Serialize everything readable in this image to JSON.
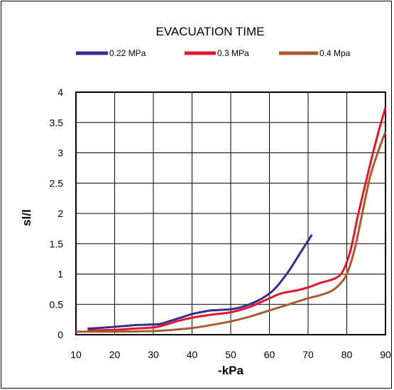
{
  "chart_data": {
    "type": "line",
    "title": "EVACUATION TIME",
    "xlabel": "-kPa",
    "ylabel": "sl/l",
    "xlim": [
      10,
      90
    ],
    "ylim": [
      0,
      4
    ],
    "x_ticks": [
      "10",
      "20",
      "30",
      "40",
      "50",
      "60",
      "70",
      "80",
      "90"
    ],
    "y_ticks": [
      "0",
      "0.5",
      "1",
      "1.5",
      "2",
      "2.5",
      "3",
      "3.5",
      "4"
    ],
    "grid": true,
    "legend_position": "top",
    "series": [
      {
        "name": "0.22 MPa",
        "color": "#3a2a8c",
        "points": [
          [
            13,
            0.1
          ],
          [
            18,
            0.12
          ],
          [
            22,
            0.14
          ],
          [
            26,
            0.16
          ],
          [
            30,
            0.17
          ],
          [
            32,
            0.18
          ],
          [
            34,
            0.22
          ],
          [
            37,
            0.28
          ],
          [
            40,
            0.34
          ],
          [
            43,
            0.38
          ],
          [
            45,
            0.4
          ],
          [
            50,
            0.42
          ],
          [
            53,
            0.46
          ],
          [
            57,
            0.56
          ],
          [
            60,
            0.68
          ],
          [
            62,
            0.8
          ],
          [
            65,
            1.05
          ],
          [
            68,
            1.35
          ],
          [
            71,
            1.65
          ]
        ]
      },
      {
        "name": "0.3 MPa",
        "color": "#e3162e",
        "points": [
          [
            13,
            0.07
          ],
          [
            20,
            0.08
          ],
          [
            25,
            0.1
          ],
          [
            30,
            0.12
          ],
          [
            33,
            0.16
          ],
          [
            36,
            0.22
          ],
          [
            40,
            0.28
          ],
          [
            45,
            0.33
          ],
          [
            50,
            0.37
          ],
          [
            55,
            0.46
          ],
          [
            60,
            0.6
          ],
          [
            63,
            0.68
          ],
          [
            67,
            0.73
          ],
          [
            70,
            0.78
          ],
          [
            73,
            0.85
          ],
          [
            77,
            0.93
          ],
          [
            79,
            1.05
          ],
          [
            81,
            1.4
          ],
          [
            83,
            2.0
          ],
          [
            86,
            2.8
          ],
          [
            88,
            3.3
          ],
          [
            90,
            3.75
          ]
        ]
      },
      {
        "name": "0.4 Mpa",
        "color": "#a65c2c",
        "points": [
          [
            10,
            0.05
          ],
          [
            20,
            0.05
          ],
          [
            30,
            0.06
          ],
          [
            35,
            0.08
          ],
          [
            40,
            0.11
          ],
          [
            45,
            0.16
          ],
          [
            50,
            0.22
          ],
          [
            55,
            0.3
          ],
          [
            60,
            0.4
          ],
          [
            65,
            0.5
          ],
          [
            70,
            0.6
          ],
          [
            73,
            0.65
          ],
          [
            76,
            0.72
          ],
          [
            78,
            0.82
          ],
          [
            80,
            1.0
          ],
          [
            82,
            1.4
          ],
          [
            84,
            2.0
          ],
          [
            86,
            2.6
          ],
          [
            88,
            3.0
          ],
          [
            90,
            3.35
          ]
        ]
      }
    ]
  }
}
